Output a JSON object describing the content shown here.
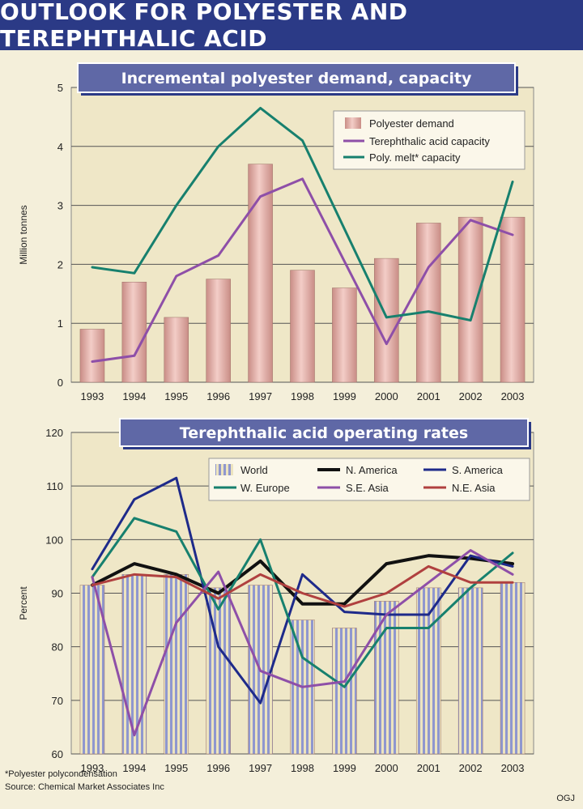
{
  "page_title": "Outlook for polyester and terephthalic acid",
  "footnote": "*Polyester polycondensation",
  "source": "Source: Chemical Market Associates Inc",
  "credit": "OGJ",
  "colors": {
    "banner": "#2b3a86",
    "bar_pink": "#e8b4ad",
    "bar_blue": "#9ea6d4",
    "purple": "#8e4fa8",
    "green": "#17806e",
    "black": "#111111",
    "navy": "#1e2a8a",
    "red": "#b0403f"
  },
  "chart_data": [
    {
      "type": "bar+line",
      "title": "Incremental polyester demand, capacity",
      "xlabel": "",
      "ylabel": "Million tonnes",
      "ylim": [
        0,
        5
      ],
      "yticks": [
        0,
        1,
        2,
        3,
        4,
        5
      ],
      "grid": true,
      "legend_position": "top-right",
      "categories": [
        "1993",
        "1994",
        "1995",
        "1996",
        "1997",
        "1998",
        "1999",
        "2000",
        "2001",
        "2002",
        "2003"
      ],
      "bars": {
        "name": "Polyester demand",
        "values": [
          0.9,
          1.7,
          1.1,
          1.75,
          3.7,
          1.9,
          1.6,
          2.1,
          2.7,
          2.8,
          2.8
        ]
      },
      "series": [
        {
          "name": "Terephthalic acid capacity",
          "color": "#8e4fa8",
          "values": [
            0.35,
            0.45,
            1.8,
            2.15,
            3.15,
            3.45,
            2.05,
            0.65,
            1.95,
            2.75,
            2.5
          ]
        },
        {
          "name": "Poly. melt* capacity",
          "color": "#17806e",
          "values": [
            1.95,
            1.85,
            3.0,
            4.0,
            4.65,
            4.1,
            2.6,
            1.1,
            1.2,
            1.05,
            3.4
          ]
        }
      ]
    },
    {
      "type": "bar+line",
      "title": "Terephthalic acid operating rates",
      "xlabel": "",
      "ylabel": "Percent",
      "ylim": [
        60,
        120
      ],
      "yticks": [
        60,
        70,
        80,
        90,
        100,
        110,
        120
      ],
      "grid": true,
      "legend_position": "top",
      "categories": [
        "1993",
        "1994",
        "1995",
        "1996",
        "1997",
        "1998",
        "1999",
        "2000",
        "2001",
        "2002",
        "2003"
      ],
      "bars": {
        "name": "World",
        "values": [
          91.5,
          93.5,
          93.5,
          91,
          91.5,
          85,
          83.5,
          88.5,
          91,
          91,
          92
        ]
      },
      "series": [
        {
          "name": "N. America",
          "color": "#111111",
          "values": [
            91.5,
            95.5,
            93.5,
            90,
            96,
            88,
            88,
            95.5,
            97,
            96.5,
            95.5
          ]
        },
        {
          "name": "S. America",
          "color": "#1e2a8a",
          "values": [
            94.5,
            107.5,
            111.5,
            80,
            69.5,
            93.5,
            86.5,
            86,
            86,
            97,
            95
          ]
        },
        {
          "name": "W. Europe",
          "color": "#17806e",
          "values": [
            93,
            104,
            101.5,
            87,
            100,
            78,
            72.5,
            83.5,
            83.5,
            91,
            97.5
          ]
        },
        {
          "name": "S.E. Asia",
          "color": "#8e4fa8",
          "values": [
            93,
            63.5,
            84.5,
            94,
            75.5,
            72.5,
            73.5,
            86,
            92,
            98,
            93.5
          ]
        },
        {
          "name": "N.E. Asia",
          "color": "#b0403f",
          "values": [
            91.5,
            93.5,
            93,
            89,
            93.5,
            90,
            87.5,
            90,
            95,
            92,
            92
          ]
        }
      ]
    }
  ]
}
